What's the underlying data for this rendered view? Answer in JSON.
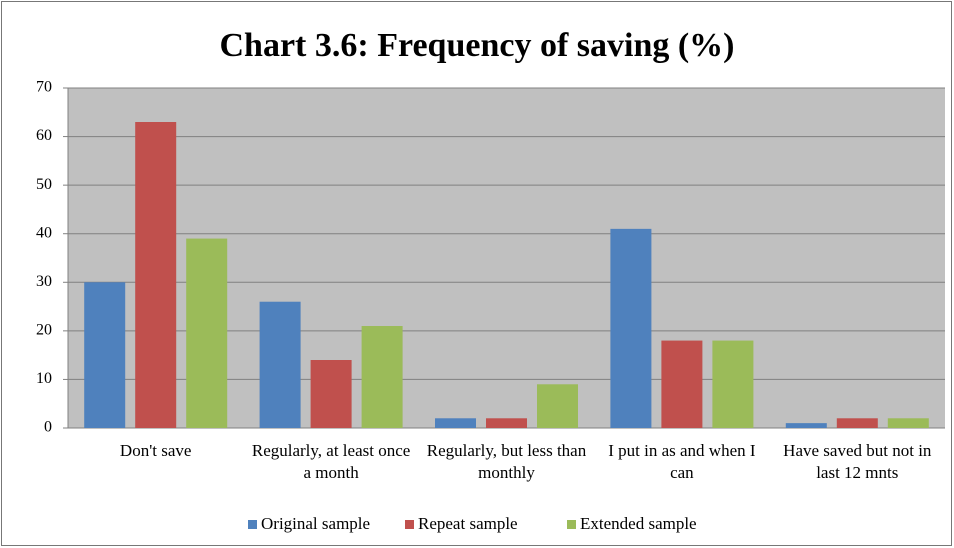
{
  "chart_data": {
    "type": "bar",
    "title": "Chart 3.6: Frequency of saving (%)",
    "categories": [
      "Don't save",
      "Regularly, at least once a month",
      "Regularly, but less than monthly",
      "I put in as and when I can",
      "Have saved but not in last 12 mnts"
    ],
    "series": [
      {
        "name": "Original sample",
        "color": "#4f81bd",
        "values": [
          30,
          26,
          2,
          41,
          1
        ]
      },
      {
        "name": "Repeat sample",
        "color": "#c0504d",
        "values": [
          63,
          14,
          2,
          18,
          2
        ]
      },
      {
        "name": "Extended sample",
        "color": "#9bbb59",
        "values": [
          39,
          21,
          9,
          18,
          2
        ]
      }
    ],
    "ylim": [
      0,
      70
    ],
    "yticks": [
      0,
      10,
      20,
      30,
      40,
      50,
      60,
      70
    ],
    "grid": true,
    "legend": "bottom"
  }
}
